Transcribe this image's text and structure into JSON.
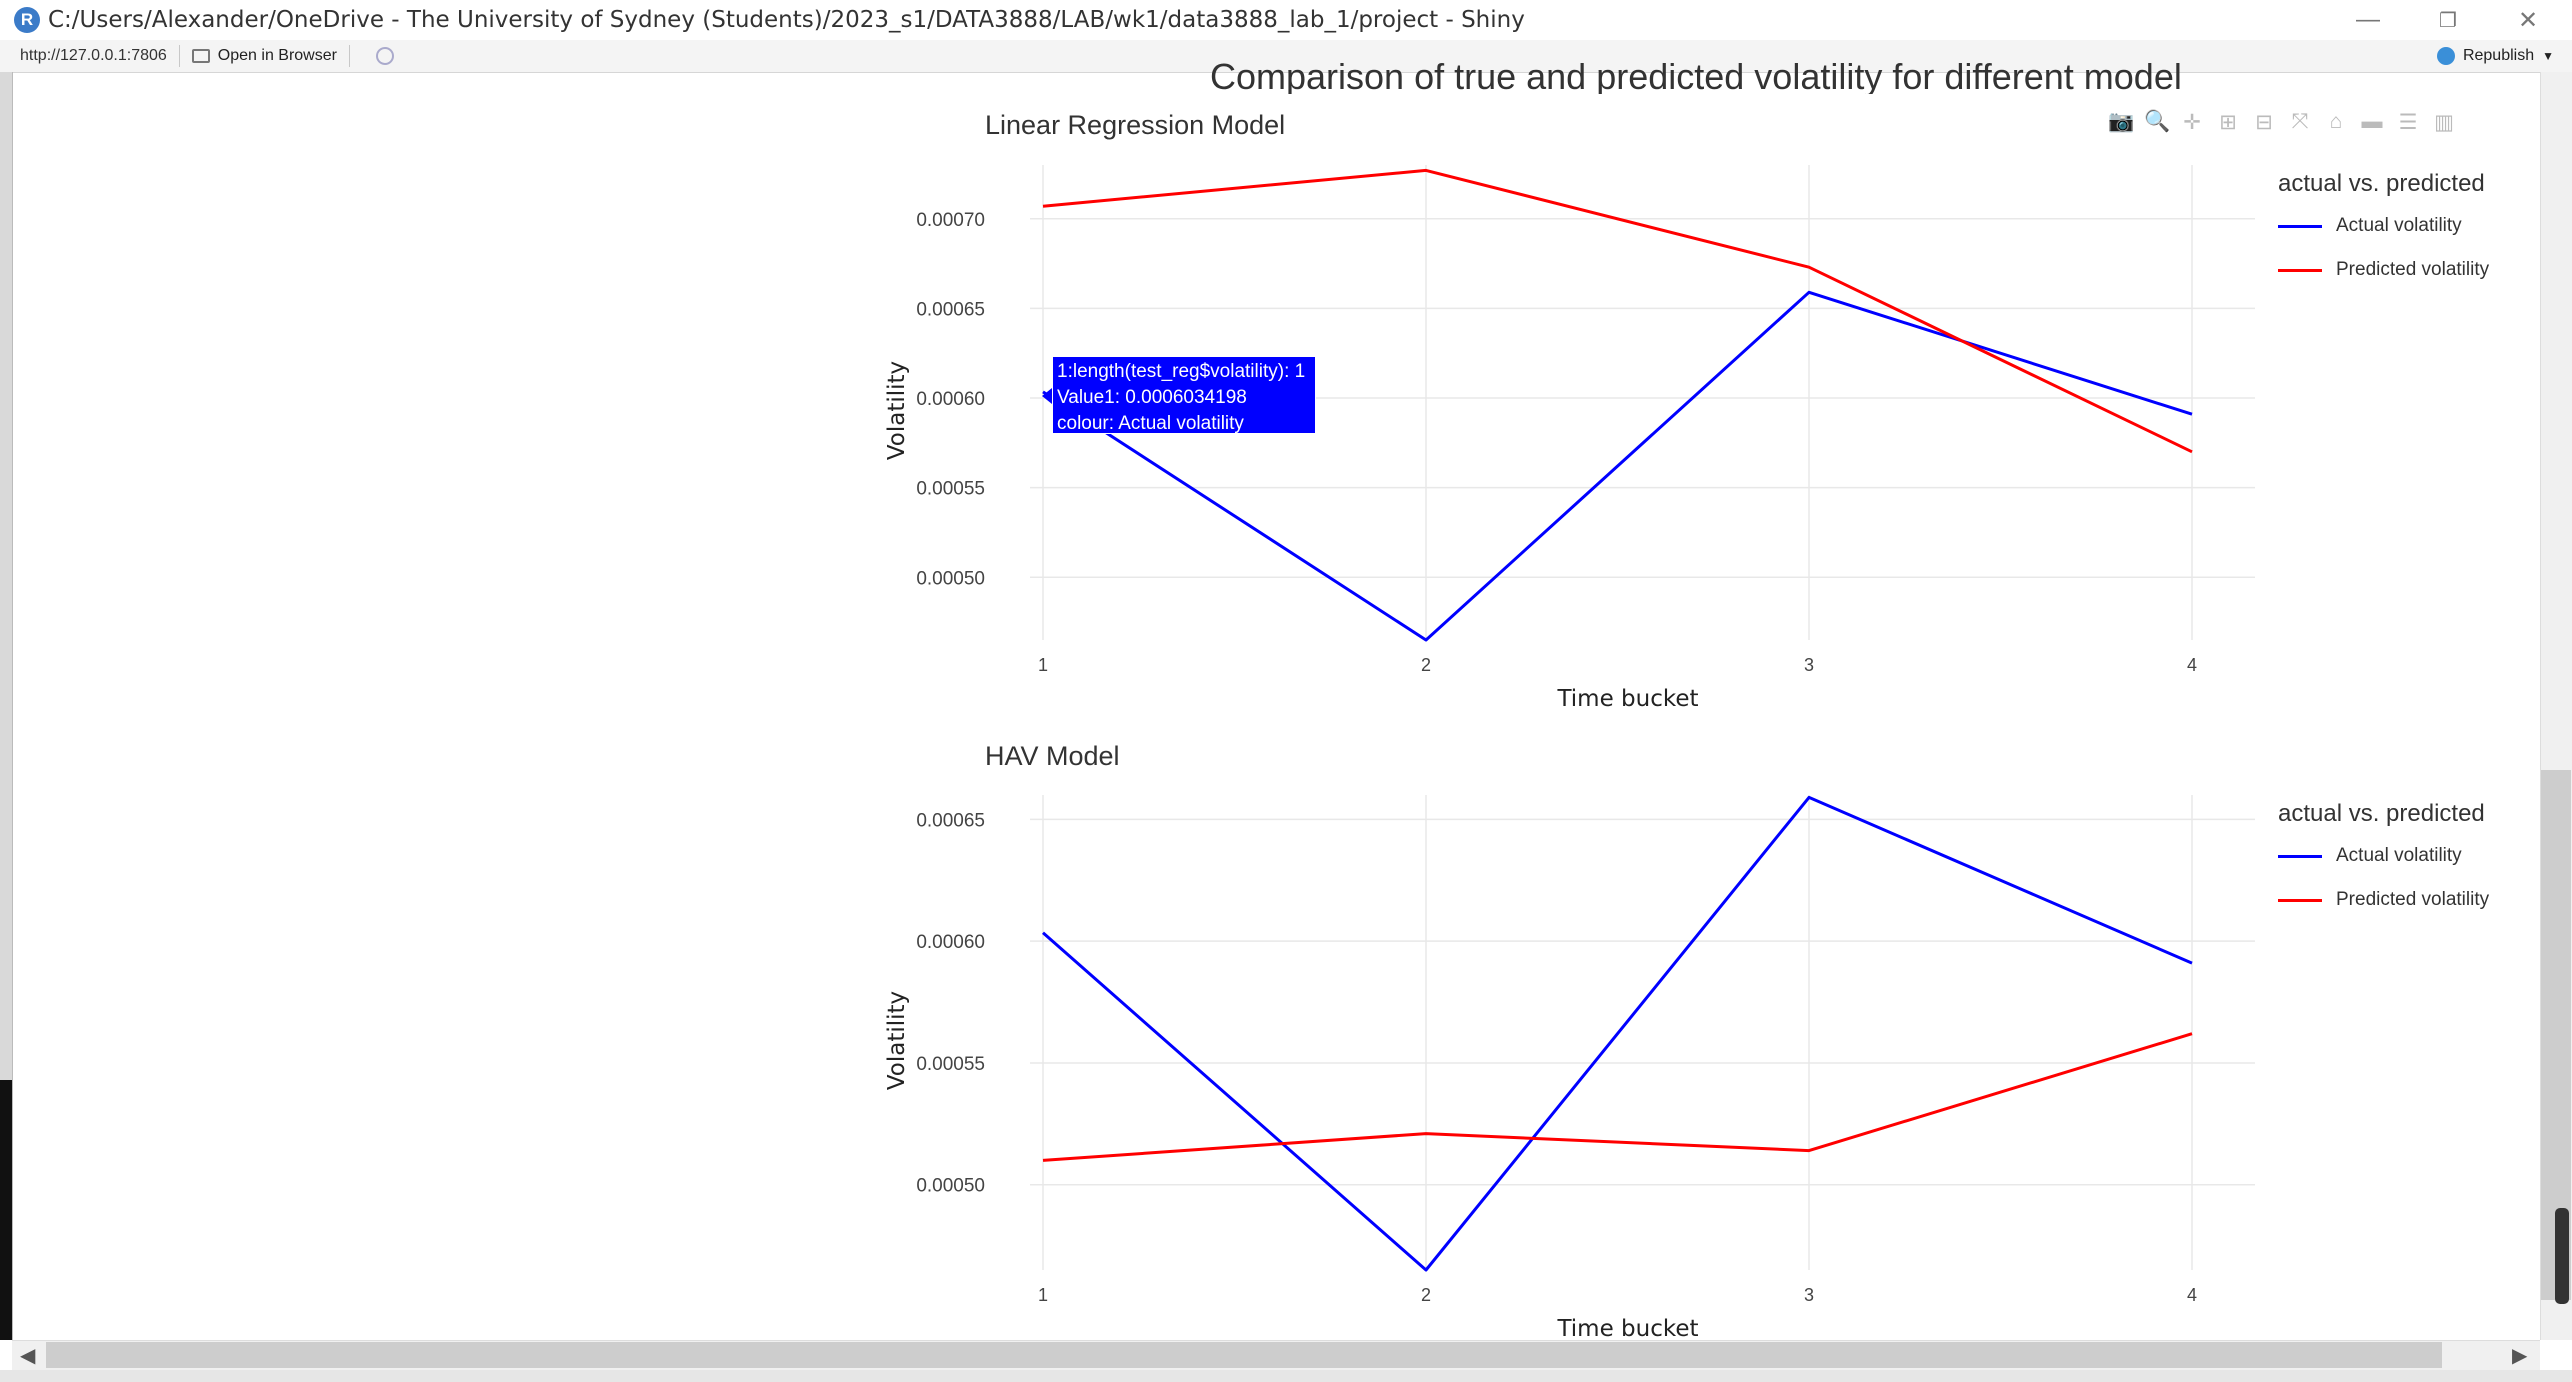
{
  "window": {
    "title": "C:/Users/Alexander/OneDrive - The University of Sydney (Students)/2023_s1/DATA3888/LAB/wk1/data3888_lab_1/project - Shiny",
    "app_icon": "R",
    "controls": {
      "minimize": "—",
      "restore": "❐",
      "close": "✕"
    }
  },
  "addressbar": {
    "url": "http://127.0.0.1:7806",
    "open_in_browser": "Open in Browser",
    "republish": "Republish"
  },
  "page": {
    "main_title": "Comparison of true and predicted volatility for different model",
    "modebar_icons": [
      "camera-icon",
      "zoom-icon",
      "pan-icon",
      "zoom-in-icon",
      "zoom-out-icon",
      "autoscale-icon",
      "reset-axes-icon",
      "spike-lines-icon",
      "compare-data-icon",
      "plotly-logo-icon"
    ]
  },
  "tooltip": {
    "line1": "1:length(test_reg$volatility): 1",
    "line2": "Value1: 0.0006034198",
    "line3": "colour: Actual volatility"
  },
  "colors": {
    "actual": "#0000ff",
    "predicted": "#ff0000",
    "grid": "#e8e8e8"
  },
  "chart_data": [
    {
      "type": "line",
      "title": "Linear Regression Model",
      "xlabel": "Time bucket",
      "ylabel": "Volatility",
      "x": [
        1,
        2,
        3,
        4
      ],
      "xticks": [
        "1",
        "2",
        "3",
        "4"
      ],
      "ylim": [
        0.000465,
        0.00073
      ],
      "yticks": [
        "0.00050",
        "0.00055",
        "0.00060",
        "0.00065",
        "0.00070"
      ],
      "legend_title": "actual vs. predicted",
      "series": [
        {
          "name": "Actual volatility",
          "values": [
            0.0006034198,
            0.000465,
            0.000659,
            0.000591
          ]
        },
        {
          "name": "Predicted volatility",
          "values": [
            0.000707,
            0.000727,
            0.000673,
            0.00057
          ]
        }
      ]
    },
    {
      "type": "line",
      "title": "HAV Model",
      "xlabel": "Time bucket",
      "ylabel": "Volatility",
      "x": [
        1,
        2,
        3,
        4
      ],
      "xticks": [
        "1",
        "2",
        "3",
        "4"
      ],
      "ylim": [
        0.000465,
        0.00066
      ],
      "yticks": [
        "0.00050",
        "0.00055",
        "0.00060",
        "0.00065"
      ],
      "legend_title": "actual vs. predicted",
      "series": [
        {
          "name": "Actual volatility",
          "values": [
            0.0006034198,
            0.000465,
            0.000659,
            0.000591
          ]
        },
        {
          "name": "Predicted volatility",
          "values": [
            0.00051,
            0.000521,
            0.000514,
            0.000562
          ]
        }
      ]
    }
  ]
}
